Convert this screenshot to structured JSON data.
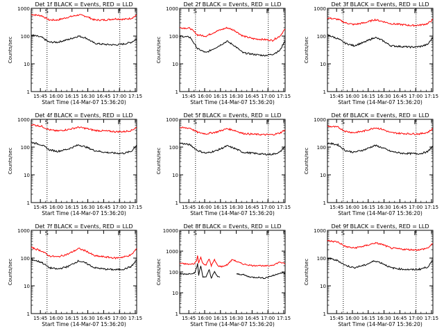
{
  "figure": {
    "background": "#ffffff",
    "axis_color": "#000000",
    "events_color": "#000000",
    "lld_color": "#ff0000"
  },
  "chart_data": [
    {
      "type": "line",
      "title": "Det 1f BLACK = Events, RED = LLD",
      "xlabel": "Start Time (14-Mar-07 15:36:20)",
      "ylabel": "Counts/sec",
      "x_tick_labels": [
        "15:45",
        "16:00",
        "16:15",
        "16:30",
        "16:45",
        "17:00",
        "17:15"
      ],
      "y_tick_labels": [
        "1",
        "10",
        "100",
        "1000"
      ],
      "yscale": "log",
      "ylim": [
        1,
        1000
      ],
      "xlim_minutes": [
        0,
        100
      ],
      "markers": [
        {
          "x_minute": 15,
          "label": "S"
        },
        {
          "x_minute": 84,
          "label": "E"
        }
      ],
      "series": [
        {
          "x_minutes": [
            0,
            10,
            17,
            25,
            35,
            45,
            52,
            60,
            70,
            80,
            88,
            95,
            100
          ],
          "values": [
            600,
            540,
            380,
            380,
            480,
            580,
            520,
            380,
            380,
            420,
            400,
            440,
            560
          ]
        },
        {
          "x_minutes": [
            0,
            10,
            17,
            25,
            35,
            45,
            52,
            60,
            70,
            80,
            88,
            95,
            100
          ],
          "values": [
            110,
            90,
            60,
            60,
            75,
            100,
            85,
            55,
            50,
            48,
            52,
            60,
            80
          ]
        }
      ]
    },
    {
      "type": "line",
      "title": "Det 2f BLACK = Events, RED = LLD",
      "xlabel": "Start Time (14-Mar-07 15:36:20)",
      "ylabel": "Counts/sec",
      "x_tick_labels": [
        "15:45",
        "16:00",
        "16:15",
        "16:30",
        "16:45",
        "17:00",
        "17:15"
      ],
      "y_tick_labels": [
        "1",
        "10",
        "100",
        "1000"
      ],
      "yscale": "log",
      "ylim": [
        1,
        1000
      ],
      "xlim_minutes": [
        0,
        100
      ],
      "markers": [
        {
          "x_minute": 15,
          "label": "S"
        },
        {
          "x_minute": 84,
          "label": "E"
        }
      ],
      "series": [
        {
          "x_minutes": [
            0,
            10,
            17,
            25,
            35,
            45,
            52,
            60,
            70,
            80,
            88,
            95,
            100
          ],
          "values": [
            200,
            190,
            110,
            100,
            150,
            200,
            160,
            100,
            80,
            75,
            70,
            100,
            180
          ]
        },
        {
          "x_minutes": [
            0,
            10,
            17,
            25,
            35,
            45,
            52,
            60,
            70,
            80,
            88,
            95,
            100
          ],
          "values": [
            100,
            90,
            35,
            25,
            40,
            65,
            45,
            25,
            22,
            20,
            22,
            30,
            70
          ]
        }
      ]
    },
    {
      "type": "line",
      "title": "Det 3f BLACK = Events, RED = LLD",
      "xlabel": "Start Time (14-Mar-07 15:36:20)",
      "ylabel": "Counts/sec",
      "x_tick_labels": [
        "15:45",
        "16:00",
        "16:15",
        "16:30",
        "16:45",
        "17:00",
        "17:15"
      ],
      "y_tick_labels": [
        "1",
        "10",
        "100",
        "1000"
      ],
      "yscale": "log",
      "ylim": [
        1,
        1000
      ],
      "xlim_minutes": [
        0,
        100
      ],
      "markers": [
        {
          "x_minute": 15,
          "label": "S"
        },
        {
          "x_minute": 84,
          "label": "E"
        }
      ],
      "series": [
        {
          "x_minutes": [
            0,
            10,
            17,
            25,
            35,
            45,
            52,
            60,
            70,
            80,
            88,
            95,
            100
          ],
          "values": [
            450,
            400,
            300,
            260,
            300,
            390,
            340,
            280,
            260,
            240,
            250,
            280,
            400
          ]
        },
        {
          "x_minutes": [
            0,
            10,
            17,
            25,
            35,
            45,
            52,
            60,
            70,
            80,
            88,
            95,
            100
          ],
          "values": [
            110,
            80,
            55,
            45,
            60,
            90,
            70,
            45,
            42,
            40,
            42,
            50,
            90
          ]
        }
      ]
    },
    {
      "type": "line",
      "title": "Det 4f BLACK = Events, RED = LLD",
      "xlabel": "Start Time (14-Mar-07 15:36:20)",
      "ylabel": "Counts/sec",
      "x_tick_labels": [
        "15:45",
        "16:00",
        "16:15",
        "16:30",
        "16:45",
        "17:00",
        "17:15"
      ],
      "y_tick_labels": [
        "1",
        "10",
        "100",
        "1000"
      ],
      "yscale": "log",
      "ylim": [
        1,
        1000
      ],
      "xlim_minutes": [
        0,
        100
      ],
      "markers": [
        {
          "x_minute": 15,
          "label": "S"
        },
        {
          "x_minute": 84,
          "label": "E"
        }
      ],
      "series": [
        {
          "x_minutes": [
            0,
            10,
            17,
            25,
            35,
            45,
            52,
            60,
            70,
            80,
            88,
            95,
            100
          ],
          "values": [
            650,
            560,
            420,
            380,
            430,
            520,
            470,
            400,
            380,
            360,
            360,
            400,
            520
          ]
        },
        {
          "x_minutes": [
            0,
            10,
            17,
            25,
            35,
            45,
            52,
            60,
            70,
            80,
            88,
            95,
            100
          ],
          "values": [
            150,
            120,
            80,
            70,
            85,
            120,
            100,
            75,
            65,
            60,
            60,
            70,
            120
          ]
        }
      ]
    },
    {
      "type": "line",
      "title": "Det 5f BLACK = Events, RED = LLD",
      "xlabel": "Start Time (14-Mar-07 15:36:20)",
      "ylabel": "Counts/sec",
      "x_tick_labels": [
        "15:45",
        "16:00",
        "16:15",
        "16:30",
        "16:45",
        "17:00",
        "17:15"
      ],
      "y_tick_labels": [
        "1",
        "10",
        "100",
        "1000"
      ],
      "yscale": "log",
      "ylim": [
        1,
        1000
      ],
      "xlim_minutes": [
        0,
        100
      ],
      "markers": [
        {
          "x_minute": 15,
          "label": "S"
        },
        {
          "x_minute": 84,
          "label": "E"
        }
      ],
      "series": [
        {
          "x_minutes": [
            0,
            10,
            17,
            25,
            35,
            45,
            52,
            60,
            70,
            80,
            88,
            95,
            100
          ],
          "values": [
            500,
            480,
            340,
            300,
            350,
            460,
            400,
            310,
            290,
            280,
            280,
            320,
            420
          ]
        },
        {
          "x_minutes": [
            0,
            10,
            17,
            25,
            35,
            45,
            52,
            60,
            70,
            80,
            88,
            95,
            100
          ],
          "values": [
            140,
            120,
            75,
            60,
            75,
            110,
            90,
            65,
            60,
            55,
            55,
            65,
            110
          ]
        }
      ]
    },
    {
      "type": "line",
      "title": "Det 6f BLACK = Events, RED = LLD",
      "xlabel": "Start Time (14-Mar-07 15:36:20)",
      "ylabel": "Counts/sec",
      "x_tick_labels": [
        "15:45",
        "16:00",
        "16:15",
        "16:30",
        "16:45",
        "17:00",
        "17:15"
      ],
      "y_tick_labels": [
        "1",
        "10",
        "100",
        "1000"
      ],
      "yscale": "log",
      "ylim": [
        1,
        1000
      ],
      "xlim_minutes": [
        0,
        100
      ],
      "markers": [
        {
          "x_minute": 15,
          "label": "S"
        },
        {
          "x_minute": 84,
          "label": "E"
        }
      ],
      "series": [
        {
          "x_minutes": [
            0,
            10,
            17,
            25,
            35,
            45,
            52,
            60,
            70,
            80,
            88,
            95,
            100
          ],
          "values": [
            560,
            520,
            370,
            330,
            380,
            500,
            440,
            330,
            310,
            300,
            300,
            340,
            460
          ]
        },
        {
          "x_minutes": [
            0,
            10,
            17,
            25,
            35,
            45,
            52,
            60,
            70,
            80,
            88,
            95,
            100
          ],
          "values": [
            140,
            120,
            75,
            65,
            80,
            115,
            95,
            70,
            60,
            58,
            58,
            68,
            110
          ]
        }
      ]
    },
    {
      "type": "line",
      "title": "Det 7f BLACK = Events, RED = LLD",
      "xlabel": "Start Time (14-Mar-07 15:36:20)",
      "ylabel": "Counts/sec",
      "x_tick_labels": [
        "15:45",
        "16:00",
        "16:15",
        "16:30",
        "16:45",
        "17:00",
        "17:15"
      ],
      "y_tick_labels": [
        "1",
        "10",
        "100",
        "1000"
      ],
      "yscale": "log",
      "ylim": [
        1,
        1000
      ],
      "xlim_minutes": [
        0,
        100
      ],
      "markers": [
        {
          "x_minute": 15,
          "label": "S"
        },
        {
          "x_minute": 84,
          "label": "E"
        }
      ],
      "series": [
        {
          "x_minutes": [
            0,
            10,
            17,
            25,
            35,
            45,
            52,
            60,
            70,
            80,
            88,
            95,
            100
          ],
          "values": [
            240,
            180,
            120,
            110,
            140,
            220,
            180,
            120,
            110,
            100,
            110,
            130,
            220
          ]
        },
        {
          "x_minutes": [
            0,
            10,
            17,
            25,
            35,
            45,
            52,
            60,
            70,
            80,
            88,
            95,
            100
          ],
          "values": [
            90,
            70,
            45,
            40,
            50,
            80,
            65,
            45,
            40,
            38,
            40,
            50,
            85
          ]
        }
      ]
    },
    {
      "type": "line",
      "title": "Det 8f BLACK = Events, RED = LLD",
      "xlabel": "Start Time (14-Mar-07 15:36:20)",
      "ylabel": "Counts/sec",
      "x_tick_labels": [
        "15:45",
        "16:00",
        "16:15",
        "16:30",
        "16:45",
        "17:00",
        "17:15"
      ],
      "y_tick_labels": [
        "1",
        "10",
        "100",
        "1000",
        "10000"
      ],
      "yscale": "log",
      "ylim": [
        1,
        10000
      ],
      "xlim_minutes": [
        0,
        100
      ],
      "markers": [
        {
          "x_minute": 15,
          "label": "S"
        },
        {
          "x_minute": 84,
          "label": "E"
        }
      ],
      "series": [
        {
          "x_minutes": [
            0,
            10,
            14,
            16,
            17,
            18,
            20,
            22,
            25,
            28,
            30,
            33,
            36,
            40,
            45,
            50,
            55,
            60,
            65,
            70,
            75,
            80,
            85,
            90,
            95,
            100
          ],
          "values": [
            260,
            230,
            250,
            350,
            600,
            280,
            500,
            250,
            220,
            420,
            200,
            380,
            200,
            180,
            220,
            400,
            300,
            240,
            220,
            200,
            210,
            190,
            200,
            230,
            300,
            240
          ]
        },
        {
          "x_minutes": [
            0,
            8,
            14,
            16,
            17,
            18,
            20,
            22,
            25,
            28,
            30,
            33,
            36,
            38
          ],
          "values": [
            80,
            80,
            90,
            150,
            250,
            70,
            200,
            60,
            55,
            130,
            50,
            100,
            60,
            55
          ]
        },
        {
          "x_minutes": [
            54,
            60,
            65,
            70,
            75,
            80,
            85,
            90,
            95,
            100
          ],
          "values": [
            80,
            75,
            60,
            55,
            55,
            50,
            60,
            70,
            90,
            85
          ]
        }
      ]
    },
    {
      "type": "line",
      "title": "Det 9f BLACK = Events, RED = LLD",
      "xlabel": "Start Time (14-Mar-07 15:36:20)",
      "ylabel": "Counts/sec",
      "x_tick_labels": [
        "15:45",
        "16:00",
        "16:15",
        "16:30",
        "16:45",
        "17:00",
        "17:15"
      ],
      "y_tick_labels": [
        "1",
        "10",
        "100",
        "1000"
      ],
      "yscale": "log",
      "ylim": [
        1,
        1000
      ],
      "xlim_minutes": [
        0,
        100
      ],
      "markers": [
        {
          "x_minute": 15,
          "label": "S"
        },
        {
          "x_minute": 84,
          "label": "E"
        }
      ],
      "series": [
        {
          "x_minutes": [
            0,
            10,
            17,
            25,
            35,
            45,
            52,
            60,
            70,
            80,
            88,
            95,
            100
          ],
          "values": [
            420,
            380,
            260,
            230,
            270,
            350,
            310,
            230,
            210,
            200,
            200,
            230,
            330
          ]
        },
        {
          "x_minutes": [
            0,
            10,
            17,
            25,
            35,
            45,
            52,
            60,
            70,
            80,
            88,
            95,
            100
          ],
          "values": [
            100,
            80,
            55,
            45,
            55,
            80,
            65,
            45,
            40,
            38,
            40,
            48,
            80
          ]
        }
      ]
    }
  ]
}
